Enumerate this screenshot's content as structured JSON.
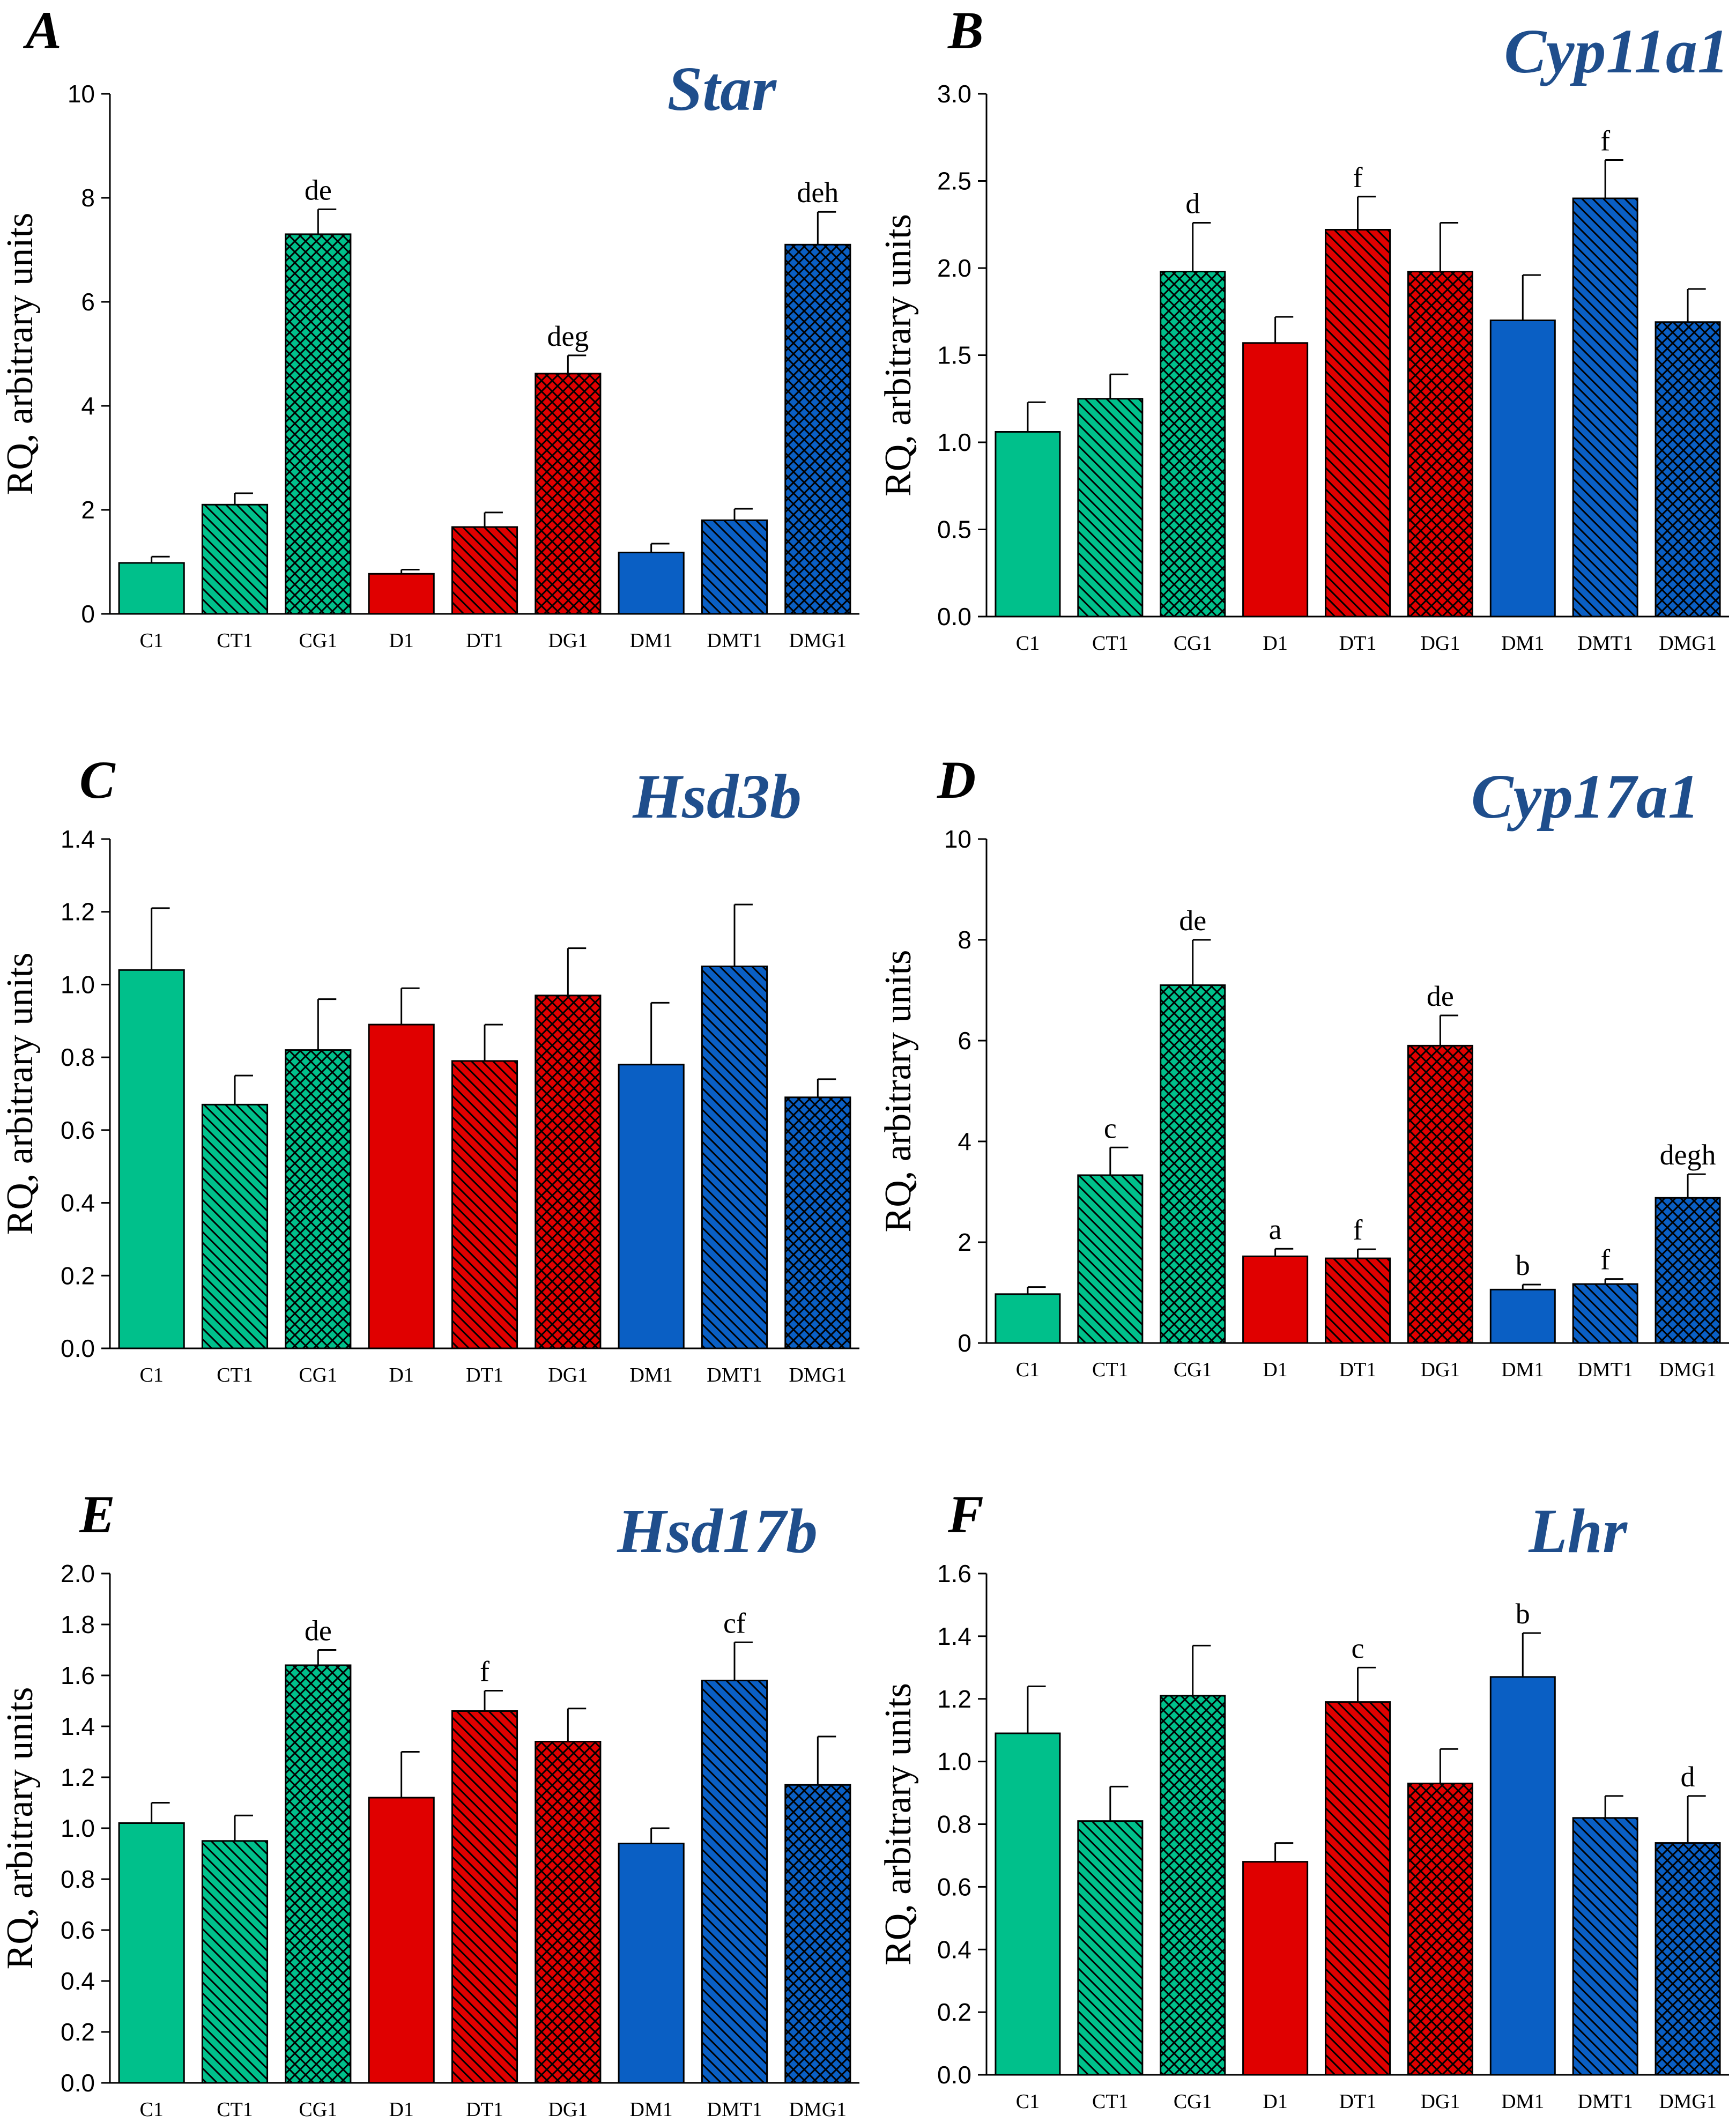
{
  "colors": {
    "green": "#00c08b",
    "red": "#e00000",
    "blue": "#0a5fc4",
    "title": "#1f4e8c"
  },
  "chart_data": [
    {
      "type": "bar",
      "panel": "A",
      "title": "Star",
      "ylabel": "RQ, arbitrary units",
      "xlabel": "",
      "ylim": [
        0,
        10
      ],
      "yticks": [
        "0",
        "2",
        "4",
        "6",
        "8",
        "10"
      ],
      "categories": [
        "C1",
        "CT1",
        "CG1",
        "D1",
        "DT1",
        "DG1",
        "DM1",
        "DMT1",
        "DMG1"
      ],
      "values": [
        0.98,
        2.1,
        7.3,
        0.77,
        1.67,
        4.62,
        1.18,
        1.8,
        7.1
      ],
      "errors": [
        0.12,
        0.22,
        0.48,
        0.08,
        0.28,
        0.35,
        0.17,
        0.22,
        0.63
      ],
      "annotations": [
        "",
        "",
        "de",
        "",
        "",
        "deg",
        "",
        "",
        "deh"
      ]
    },
    {
      "type": "bar",
      "panel": "B",
      "title": "Cyp11a1",
      "ylabel": "RQ, arbitrary units",
      "xlabel": "",
      "ylim": [
        0,
        3.0
      ],
      "yticks": [
        "0.0",
        "0.5",
        "1.0",
        "1.5",
        "2.0",
        "2.5",
        "3.0"
      ],
      "categories": [
        "C1",
        "CT1",
        "CG1",
        "D1",
        "DT1",
        "DG1",
        "DM1",
        "DMT1",
        "DMG1"
      ],
      "values": [
        1.06,
        1.25,
        1.98,
        1.57,
        2.22,
        1.98,
        1.7,
        2.4,
        1.69
      ],
      "errors": [
        0.17,
        0.14,
        0.28,
        0.15,
        0.19,
        0.28,
        0.26,
        0.22,
        0.19
      ],
      "annotations": [
        "",
        "",
        "d",
        "",
        "f",
        "",
        "",
        "f",
        ""
      ]
    },
    {
      "type": "bar",
      "panel": "C",
      "title": "Hsd3b",
      "ylabel": "RQ, arbitrary units",
      "xlabel": "",
      "ylim": [
        0,
        1.4
      ],
      "yticks": [
        "0.0",
        "0.2",
        "0.4",
        "0.6",
        "0.8",
        "1.0",
        "1.2",
        "1.4"
      ],
      "categories": [
        "C1",
        "CT1",
        "CG1",
        "D1",
        "DT1",
        "DG1",
        "DM1",
        "DMT1",
        "DMG1"
      ],
      "values": [
        1.04,
        0.67,
        0.82,
        0.89,
        0.79,
        0.97,
        0.78,
        1.05,
        0.69
      ],
      "errors": [
        0.17,
        0.08,
        0.14,
        0.1,
        0.1,
        0.13,
        0.17,
        0.17,
        0.05
      ],
      "annotations": [
        "",
        "",
        "",
        "",
        "",
        "",
        "",
        "",
        ""
      ]
    },
    {
      "type": "bar",
      "panel": "D",
      "title": "Cyp17a1",
      "ylabel": "RQ, arbitrary units",
      "xlabel": "",
      "ylim": [
        0,
        10
      ],
      "yticks": [
        "0",
        "2",
        "4",
        "6",
        "8",
        "10"
      ],
      "categories": [
        "C1",
        "CT1",
        "CG1",
        "D1",
        "DT1",
        "DG1",
        "DM1",
        "DMT1",
        "DMG1"
      ],
      "values": [
        0.97,
        3.33,
        7.1,
        1.72,
        1.68,
        5.9,
        1.06,
        1.17,
        2.88
      ],
      "errors": [
        0.14,
        0.55,
        0.9,
        0.15,
        0.18,
        0.6,
        0.1,
        0.1,
        0.47
      ],
      "annotations": [
        "",
        "c",
        "de",
        "a",
        "f",
        "de",
        "b",
        "f",
        "degh"
      ]
    },
    {
      "type": "bar",
      "panel": "E",
      "title": "Hsd17b",
      "ylabel": "RQ, arbitrary units",
      "xlabel": "",
      "ylim": [
        0,
        2.0
      ],
      "yticks": [
        "0.0",
        "0.2",
        "0.4",
        "0.6",
        "0.8",
        "1.0",
        "1.2",
        "1.4",
        "1.6",
        "1.8",
        "2.0"
      ],
      "categories": [
        "C1",
        "CT1",
        "CG1",
        "D1",
        "DT1",
        "DG1",
        "DM1",
        "DMT1",
        "DMG1"
      ],
      "values": [
        1.02,
        0.95,
        1.64,
        1.12,
        1.46,
        1.34,
        0.94,
        1.58,
        1.17
      ],
      "errors": [
        0.08,
        0.1,
        0.06,
        0.18,
        0.08,
        0.13,
        0.06,
        0.15,
        0.19
      ],
      "annotations": [
        "",
        "",
        "de",
        "",
        "f",
        "",
        "",
        "cf",
        ""
      ]
    },
    {
      "type": "bar",
      "panel": "F",
      "title": "Lhr",
      "ylabel": "RQ, arbitrary units",
      "xlabel": "",
      "ylim": [
        0,
        1.6
      ],
      "yticks": [
        "0.0",
        "0.2",
        "0.4",
        "0.6",
        "0.8",
        "1.0",
        "1.2",
        "1.4",
        "1.6"
      ],
      "categories": [
        "C1",
        "CT1",
        "CG1",
        "D1",
        "DT1",
        "DG1",
        "DM1",
        "DMT1",
        "DMG1"
      ],
      "values": [
        1.09,
        0.81,
        1.21,
        0.68,
        1.19,
        0.93,
        1.27,
        0.82,
        0.74
      ],
      "errors": [
        0.15,
        0.11,
        0.16,
        0.06,
        0.11,
        0.11,
        0.14,
        0.07,
        0.15
      ],
      "annotations": [
        "",
        "",
        "",
        "",
        "c",
        "",
        "b",
        "",
        "d"
      ]
    }
  ]
}
